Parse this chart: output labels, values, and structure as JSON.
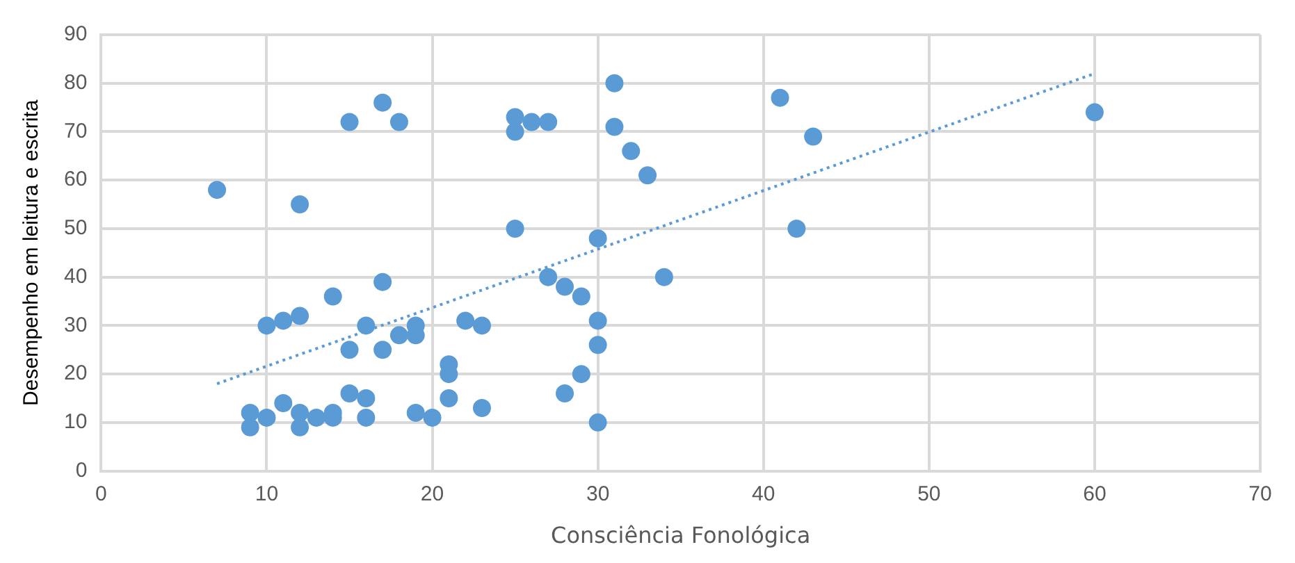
{
  "chart_data": {
    "type": "scatter",
    "xlabel": "Consciência Fonológica",
    "ylabel": "Desempenho em leitura e escrita",
    "xlim": [
      0,
      70
    ],
    "xticks": [
      0,
      10,
      20,
      30,
      40,
      50,
      60,
      70
    ],
    "ylim": [
      0,
      90
    ],
    "yticks": [
      0,
      10,
      20,
      30,
      40,
      50,
      60,
      70,
      80,
      90
    ],
    "grid": true,
    "legend": false,
    "marker": "circle",
    "series": [
      {
        "color": "#5b9bd5",
        "x": [
          7,
          12,
          15,
          17,
          18,
          25,
          25,
          26,
          27,
          31,
          31,
          32,
          33,
          41,
          43,
          60,
          42,
          25,
          30,
          27,
          28,
          29,
          34,
          30,
          30,
          29,
          28,
          30,
          14,
          17,
          10,
          11,
          12,
          16,
          19,
          19,
          18,
          22,
          23,
          15,
          17,
          21,
          21,
          21,
          23,
          11,
          15,
          16,
          9,
          10,
          12,
          12,
          9,
          13,
          14,
          14,
          16,
          19,
          20
        ],
        "values": [
          58,
          55,
          72,
          76,
          72,
          73,
          70,
          72,
          72,
          80,
          71,
          66,
          61,
          77,
          69,
          74,
          50,
          50,
          48,
          40,
          38,
          36,
          40,
          31,
          26,
          20,
          16,
          10,
          36,
          39,
          30,
          31,
          32,
          30,
          30,
          28,
          28,
          31,
          30,
          25,
          25,
          22,
          20,
          15,
          13,
          14,
          16,
          15,
          12,
          11,
          12,
          9,
          9,
          11,
          12,
          11,
          11,
          12,
          11
        ]
      },
      {
        "type": "line",
        "color": "#5b9bd5",
        "line_style": "dotted",
        "marker": "none",
        "x": [
          7,
          60
        ],
        "values": [
          18,
          82
        ]
      }
    ]
  }
}
